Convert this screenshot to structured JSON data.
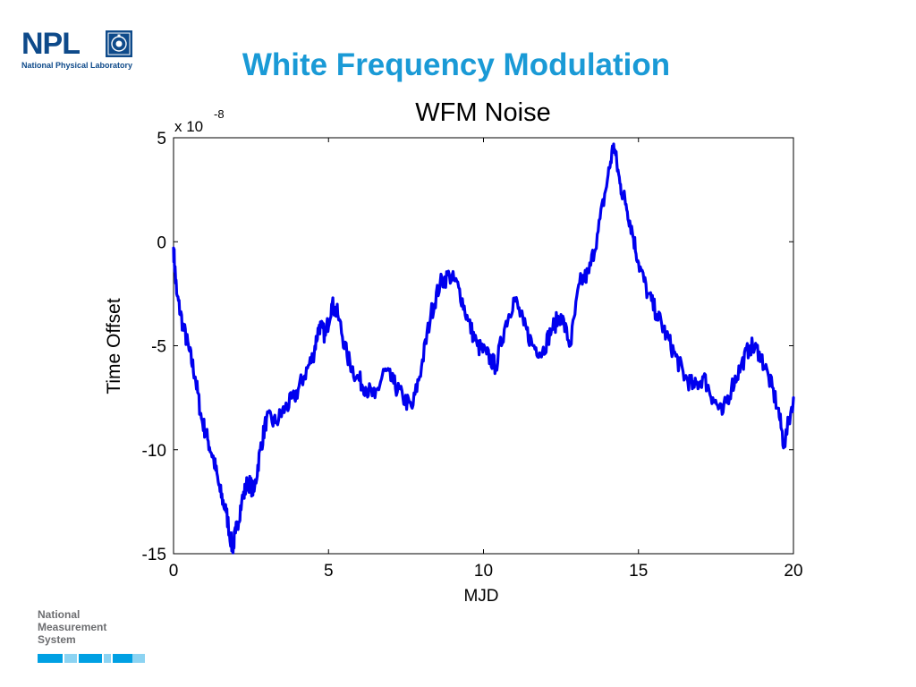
{
  "slide": {
    "title": "White Frequency Modulation",
    "colors": {
      "title": "#1a9ad6",
      "brand": "#0e4a8a",
      "bar": "#00a0e3",
      "bar_light": "#8cd3f2"
    }
  },
  "npl_logo": {
    "wordmark": "NPL",
    "subtitle": "National Physical Laboratory",
    "seal_icon": "npl-crest-icon"
  },
  "nms_logo": {
    "lines": [
      "National",
      "Measurement",
      "System"
    ]
  },
  "chart_data": {
    "type": "line",
    "title": "WFM Noise",
    "xlabel": "MJD",
    "ylabel": "Time Offset",
    "scale_label": "x 10",
    "scale_exponent": "-8",
    "xlim": [
      0,
      20
    ],
    "ylim": [
      -15,
      5
    ],
    "xticks": [
      0,
      5,
      10,
      15,
      20
    ],
    "yticks": [
      5,
      0,
      -5,
      -10,
      -15
    ],
    "grid": false,
    "line_color": "#0000ee",
    "series": [
      {
        "x": [
          0,
          0.1,
          0.3,
          0.5,
          0.7,
          0.9,
          1.1,
          1.3,
          1.5,
          1.7,
          1.9,
          2.0,
          2.2,
          2.4,
          2.6,
          2.8,
          3.0,
          3.3,
          3.6,
          3.9,
          4.2,
          4.5,
          4.7,
          4.9,
          5.1,
          5.3,
          5.6,
          5.9,
          6.2,
          6.5,
          6.8,
          7.1,
          7.4,
          7.7,
          8.0,
          8.3,
          8.6,
          8.9,
          9.2,
          9.5,
          9.8,
          10.1,
          10.4,
          10.7,
          11.0,
          11.3,
          11.6,
          11.9,
          12.2,
          12.5,
          12.8,
          13.1,
          13.4,
          13.7,
          14.0,
          14.2,
          14.4,
          14.6,
          14.8,
          15.0,
          15.3,
          15.6,
          15.9,
          16.2,
          16.5,
          16.8,
          17.1,
          17.4,
          17.7,
          18.0,
          18.3,
          18.6,
          18.9,
          19.2,
          19.5,
          19.7,
          20.0
        ],
        "values": [
          -0.3,
          -2.5,
          -4.0,
          -5.2,
          -6.5,
          -8.5,
          -9.5,
          -10.5,
          -12.0,
          -13.0,
          -14.8,
          -14.0,
          -12.5,
          -11.5,
          -12.0,
          -10.0,
          -8.5,
          -8.7,
          -8.0,
          -7.5,
          -6.5,
          -5.5,
          -4.0,
          -4.5,
          -3.0,
          -3.5,
          -5.5,
          -6.5,
          -7.0,
          -7.5,
          -6.2,
          -6.8,
          -7.5,
          -8.0,
          -6.0,
          -3.5,
          -2.0,
          -1.6,
          -2.2,
          -3.8,
          -5.0,
          -5.4,
          -6.0,
          -4.0,
          -2.7,
          -4.0,
          -5.0,
          -5.3,
          -4.2,
          -3.5,
          -5.0,
          -2.0,
          -1.5,
          0.5,
          3.0,
          4.7,
          2.8,
          1.8,
          0.5,
          -1.0,
          -2.5,
          -3.5,
          -4.5,
          -5.5,
          -6.5,
          -7.0,
          -6.5,
          -7.5,
          -8.3,
          -7.0,
          -6.0,
          -5.0,
          -5.3,
          -6.5,
          -8.0,
          -9.8,
          -7.5
        ]
      }
    ]
  }
}
